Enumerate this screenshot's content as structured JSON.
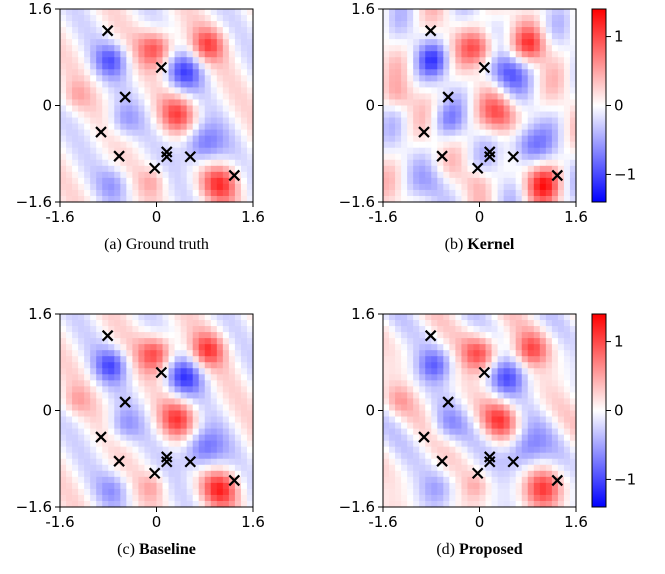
{
  "chart_data": {
    "type": "heatmap",
    "colormap": "bwr",
    "colorbar": {
      "range": [
        -1.4,
        1.4
      ],
      "ticks": [
        1,
        0,
        -1
      ],
      "tick_labels": [
        "1",
        "0",
        "−1"
      ]
    },
    "axes": {
      "xlim": [
        -1.6,
        1.6
      ],
      "ylim": [
        -1.6,
        1.6
      ],
      "x_ticks": [
        -1.6,
        0,
        1.6
      ],
      "x_tick_labels": [
        "-1.6",
        "0",
        "1.6"
      ],
      "y_ticks": [
        1.6,
        0,
        -1.6
      ],
      "y_tick_labels": [
        "1.6",
        "0",
        "−1.6"
      ]
    },
    "markers": {
      "symbol": "x",
      "points": [
        [
          -0.81,
          1.24
        ],
        [
          0.08,
          0.63
        ],
        [
          -0.52,
          0.14
        ],
        [
          -0.92,
          -0.44
        ],
        [
          -0.62,
          -0.84
        ],
        [
          0.17,
          -0.77
        ],
        [
          0.17,
          -0.85
        ],
        [
          0.56,
          -0.85
        ],
        [
          -0.03,
          -1.04
        ],
        [
          1.29,
          -1.16
        ]
      ]
    },
    "panels": [
      {
        "prefix": "(a) ",
        "bold": "",
        "plain": "Ground truth",
        "variant": 0
      },
      {
        "prefix": "(b) ",
        "bold": "Kernel",
        "plain": "",
        "variant": 1
      },
      {
        "prefix": "(c) ",
        "bold": "Baseline",
        "plain": "",
        "variant": 2
      },
      {
        "prefix": "(d) ",
        "bold": "Proposed",
        "plain": "",
        "variant": 3
      }
    ]
  }
}
